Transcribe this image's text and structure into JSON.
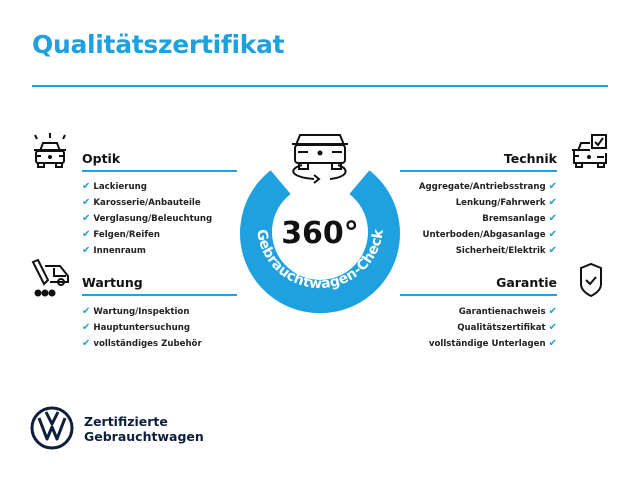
{
  "title": "Qualitätszertifikat",
  "badge": {
    "value": "360°",
    "ring_text": "Gebrauchtwagen-Check",
    "color": "#1ea1de"
  },
  "sections": {
    "optik": {
      "title": "Optik",
      "icon": "car-lights-icon",
      "items": [
        "Lackierung",
        "Karosserie/Anbauteile",
        "Verglasung/Beleuchtung",
        "Felgen/Reifen",
        "Innenraum"
      ]
    },
    "wartung": {
      "title": "Wartung",
      "icon": "service-tool-car-icon",
      "items": [
        "Wartung/Inspektion",
        "Hauptuntersuchung",
        "vollständiges Zubehör"
      ]
    },
    "technik": {
      "title": "Technik",
      "icon": "car-checkbox-icon",
      "items": [
        "Aggregate/Antriebsstrang",
        "Lenkung/Fahrwerk",
        "Bremsanlage",
        "Unterboden/Abgasanlage",
        "Sicherheit/Elektrik"
      ]
    },
    "garantie": {
      "title": "Garantie",
      "icon": "shield-check-icon",
      "items": [
        "Garantienachweis",
        "Qualitätszertifikat",
        "vollständige Unterlagen"
      ]
    }
  },
  "check_mark": "✔",
  "footer": {
    "line1": "Zertifizierte",
    "line2": "Gebrauchtwagen",
    "logo": "VW"
  }
}
